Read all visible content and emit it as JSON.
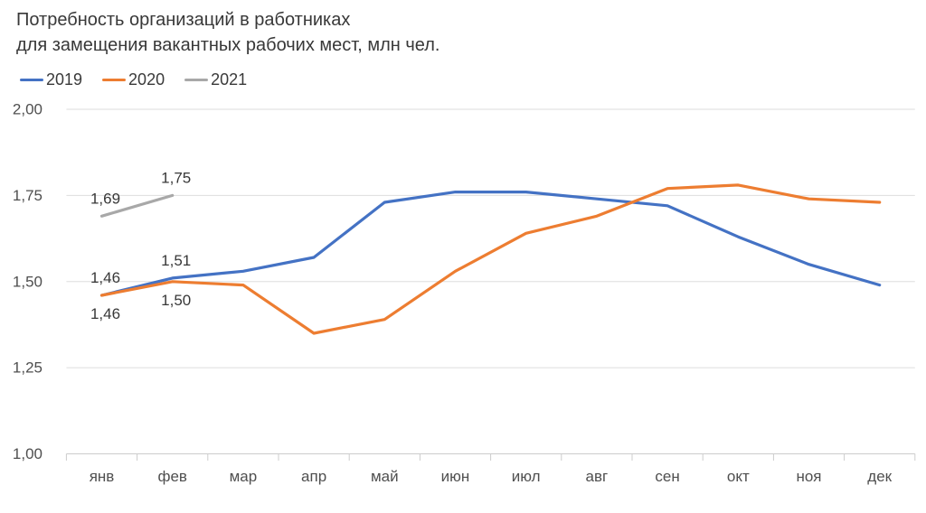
{
  "title": {
    "line1": "Потребность организаций в работниках",
    "line2": "для замещения вакантных рабочих мест, млн чел."
  },
  "chart_data": {
    "type": "line",
    "title": "Потребность организаций в работниках для замещения вакантных рабочих мест, млн чел.",
    "categories": [
      "янв",
      "фев",
      "мар",
      "апр",
      "май",
      "июн",
      "июл",
      "авг",
      "сен",
      "окт",
      "ноя",
      "дек"
    ],
    "series": [
      {
        "name": "2019",
        "color": "#4472C4",
        "values": [
          1.46,
          1.51,
          1.53,
          1.57,
          1.73,
          1.76,
          1.76,
          1.74,
          1.72,
          1.63,
          1.55,
          1.49
        ]
      },
      {
        "name": "2020",
        "color": "#ED7D31",
        "values": [
          1.46,
          1.5,
          1.49,
          1.35,
          1.39,
          1.53,
          1.64,
          1.69,
          1.77,
          1.78,
          1.74,
          1.73
        ]
      },
      {
        "name": "2021",
        "color": "#A8A8A8",
        "values": [
          1.69,
          1.75,
          null,
          null,
          null,
          null,
          null,
          null,
          null,
          null,
          null,
          null
        ]
      }
    ],
    "ylim": [
      1.0,
      2.0
    ],
    "ytick_values": [
      2.0,
      1.75,
      1.5,
      1.25,
      1.0
    ],
    "ytick_labels": [
      "2,00",
      "1,75",
      "1,50",
      "1,25",
      "1,00"
    ],
    "grid": true,
    "legend_position": "top-left",
    "point_labels": [
      {
        "series": "2021",
        "category": "янв",
        "text": "1,69",
        "placement": "above"
      },
      {
        "series": "2021",
        "category": "фев",
        "text": "1,75",
        "placement": "above"
      },
      {
        "series": "2019",
        "category": "янв",
        "text": "1,46",
        "placement": "above"
      },
      {
        "series": "2019",
        "category": "фев",
        "text": "1,51",
        "placement": "above"
      },
      {
        "series": "2020",
        "category": "янв",
        "text": "1,46",
        "placement": "below"
      },
      {
        "series": "2020",
        "category": "фев",
        "text": "1,50",
        "placement": "below"
      }
    ]
  },
  "style": {
    "grid_color": "#dedede",
    "axis_color": "#cccccc",
    "axis_text_color": "#4f4f4f",
    "point_label_color": "#383838"
  }
}
